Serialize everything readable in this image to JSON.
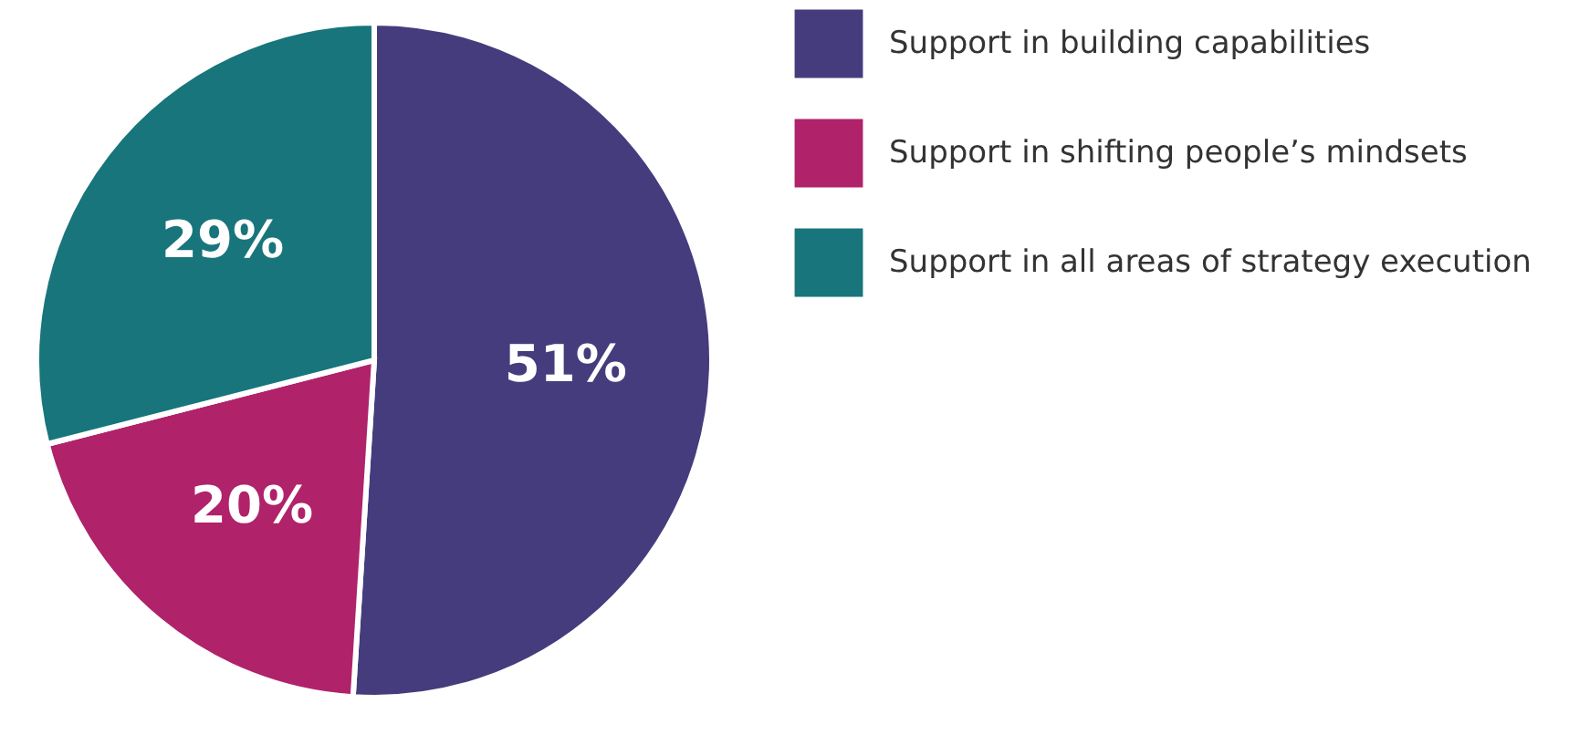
{
  "chart_data": {
    "type": "pie",
    "categories": [
      "Support in building capabilities",
      "Support in shifting people’s mindsets",
      "Support in all areas of strategy execution"
    ],
    "values": [
      51,
      20,
      29
    ],
    "colors": [
      "#453c7d",
      "#b0226a",
      "#17757b"
    ],
    "value_labels": [
      "51%",
      "20%",
      "29%"
    ],
    "legend": "right"
  }
}
